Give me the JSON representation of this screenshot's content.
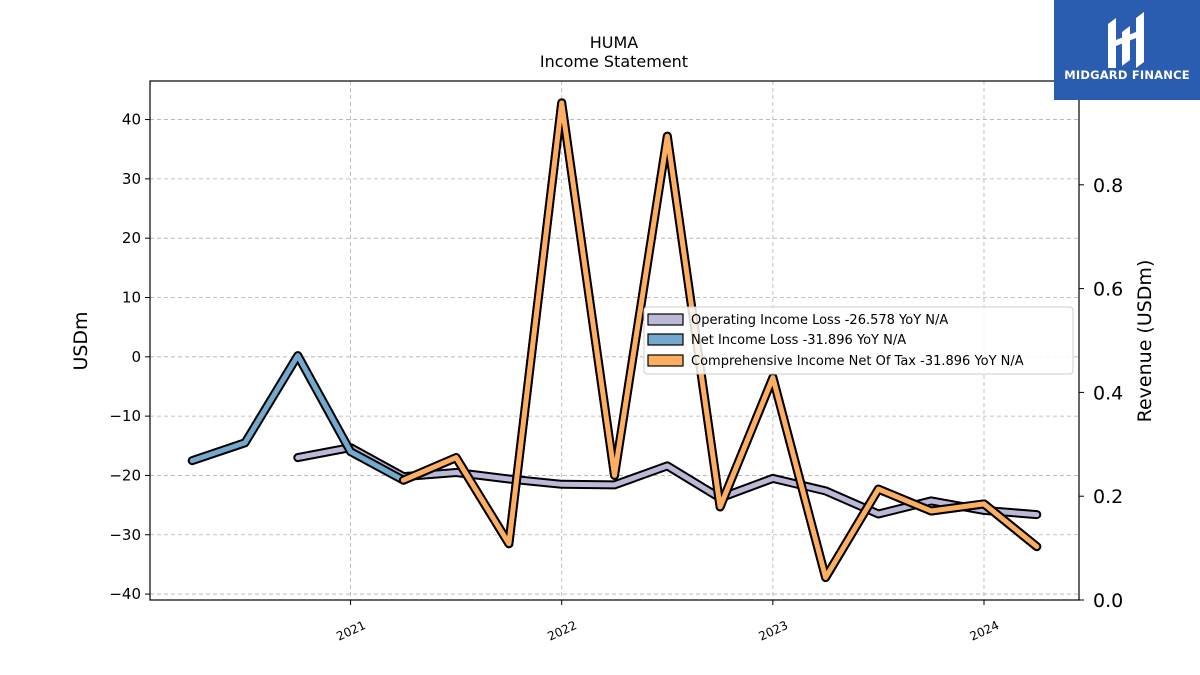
{
  "chart_data": {
    "type": "line",
    "title": "HUMA",
    "subtitle": "Income Statement",
    "ylabel": "USDm",
    "ylabel_right": "Revenue (USDm)",
    "ylim": [
      -41,
      46.5
    ],
    "ylim_right": [
      0,
      1
    ],
    "yticks": [
      40,
      30,
      20,
      10,
      0,
      -10,
      -20,
      -30,
      -40
    ],
    "yticks_right": [
      0.0,
      0.2,
      0.4,
      0.6,
      0.8
    ],
    "xlim": [
      2020.05,
      2024.45
    ],
    "xticks": [
      2021,
      2022,
      2023,
      2024
    ],
    "xticklabels": [
      "2021",
      "2022",
      "2023",
      "2024"
    ],
    "grid": true,
    "legend_position": "center-right",
    "series": [
      {
        "name": "Operating Income Loss  -26.578 YoY N/A",
        "color": "#bcb8d8",
        "x": [
          2020.75,
          2021.0,
          2021.25,
          2021.5,
          2021.75,
          2022.0,
          2022.25,
          2022.5,
          2022.75,
          2023.0,
          2023.25,
          2023.5,
          2023.75,
          2024.0,
          2024.25
        ],
        "y": [
          -17.0,
          -15.3,
          -20.2,
          -19.5,
          -20.6,
          -21.5,
          -21.6,
          -18.4,
          -23.8,
          -20.5,
          -22.6,
          -26.5,
          -24.3,
          -25.9,
          -26.6
        ]
      },
      {
        "name": "Net Income Loss  -31.896 YoY N/A",
        "color": "#74a9cf",
        "x": [
          2020.25,
          2020.5,
          2020.75,
          2021.0,
          2021.25,
          2021.5,
          2021.75,
          2022.0,
          2022.25,
          2022.5,
          2022.75,
          2023.0,
          2023.25,
          2023.5,
          2023.75,
          2024.0,
          2024.25
        ],
        "y": [
          -17.5,
          -14.5,
          0.2,
          -16.0,
          -20.8,
          -17.0,
          -31.5,
          42.8,
          -20.0,
          37.2,
          -25.3,
          -3.5,
          -37.2,
          -22.3,
          -26.0,
          -24.8,
          -32.0
        ]
      },
      {
        "name": "Comprehensive Income Net Of Tax  -31.896 YoY N/A",
        "color": "#fdae61",
        "x": [
          2021.25,
          2021.5,
          2021.75,
          2022.0,
          2022.25,
          2022.5,
          2022.75,
          2023.0,
          2023.25,
          2023.5,
          2023.75,
          2024.0,
          2024.25
        ],
        "y": [
          -20.8,
          -17.0,
          -31.5,
          42.8,
          -20.0,
          37.2,
          -25.3,
          -3.5,
          -37.2,
          -22.3,
          -26.0,
          -24.8,
          -32.0
        ]
      }
    ]
  },
  "logo": {
    "text": "MIDGARD FINANCE",
    "color": "#2a5db0"
  }
}
